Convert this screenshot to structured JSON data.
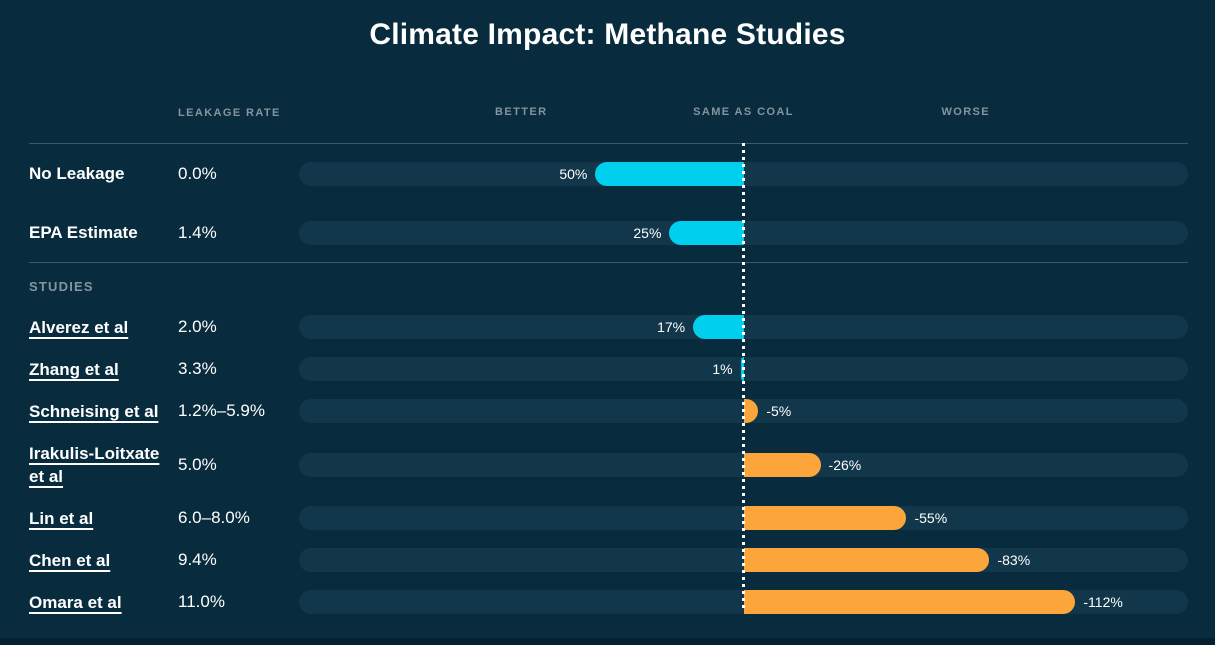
{
  "title": "Climate Impact: Methane Studies",
  "columns": {
    "leakage_rate": "LEAKAGE RATE",
    "better": "BETTER",
    "same_as_coal": "SAME AS COAL",
    "worse": "WORSE"
  },
  "section_label": "STUDIES",
  "colors": {
    "background": "#082c3d",
    "track": "#12374a",
    "positive_bar": "#00d0ee",
    "negative_bar": "#fca53b",
    "header_text": "#8494a0",
    "center_line": "#ffffff",
    "divider": "#3f5766"
  },
  "chart_data": {
    "type": "bar",
    "orientation": "horizontal-diverging",
    "title": "Climate Impact: Methane Studies",
    "axis_range_pct": [
      -150,
      150
    ],
    "center_label": "SAME AS COAL",
    "left_label": "BETTER",
    "right_label": "WORSE",
    "rows": [
      {
        "label": "No Leakage",
        "leakage_rate": "0.0%",
        "value": 50,
        "value_label": "50%",
        "link": false,
        "section": "baseline"
      },
      {
        "label": "EPA Estimate",
        "leakage_rate": "1.4%",
        "value": 25,
        "value_label": "25%",
        "link": false,
        "section": "baseline"
      },
      {
        "label": "Alverez et al",
        "leakage_rate": "2.0%",
        "value": 17,
        "value_label": "17%",
        "link": true,
        "section": "studies"
      },
      {
        "label": "Zhang et al",
        "leakage_rate": "3.3%",
        "value": 1,
        "value_label": "1%",
        "link": true,
        "section": "studies"
      },
      {
        "label": "Schneising et al",
        "leakage_rate": "1.2%–5.9%",
        "value": -5,
        "value_label": "-5%",
        "link": true,
        "section": "studies"
      },
      {
        "label": "Irakulis-Loitxate et al",
        "leakage_rate": "5.0%",
        "value": -26,
        "value_label": "-26%",
        "link": true,
        "section": "studies"
      },
      {
        "label": "Lin et al",
        "leakage_rate": "6.0–8.0%",
        "value": -55,
        "value_label": "-55%",
        "link": true,
        "section": "studies"
      },
      {
        "label": "Chen et al",
        "leakage_rate": "9.4%",
        "value": -83,
        "value_label": "-83%",
        "link": true,
        "section": "studies"
      },
      {
        "label": "Omara et al",
        "leakage_rate": "11.0%",
        "value": -112,
        "value_label": "-112%",
        "link": true,
        "section": "studies"
      }
    ]
  }
}
